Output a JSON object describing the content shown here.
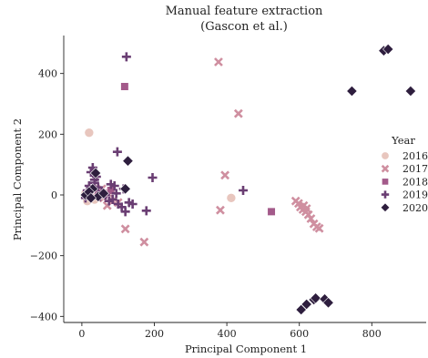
{
  "chart_data": {
    "type": "scatter",
    "title": "Manual feature extraction",
    "subtitle": "(Gascon et al.)",
    "xlabel": "Principal Component 1",
    "ylabel": "Principal Component 2",
    "xlim": [
      -50,
      950
    ],
    "ylim": [
      -420,
      525
    ],
    "xticks": [
      0,
      200,
      400,
      600,
      800
    ],
    "yticks": [
      -400,
      -200,
      0,
      200,
      400
    ],
    "xtick_labels": [
      "0",
      "200",
      "400",
      "600",
      "800"
    ],
    "ytick_labels": [
      "−400",
      "−200",
      "0",
      "200",
      "400"
    ],
    "grid": false,
    "legend": {
      "title": "Year",
      "placement": "right"
    },
    "series": [
      {
        "name": "2016",
        "marker": "circle",
        "color": "#e8c6be",
        "points": [
          [
            20,
            205
          ],
          [
            412,
            -10
          ],
          [
            15,
            -20
          ],
          [
            25,
            10
          ],
          [
            35,
            -15
          ],
          [
            10,
            5
          ],
          [
            40,
            20
          ],
          [
            50,
            -5
          ]
        ]
      },
      {
        "name": "2017",
        "marker": "x",
        "color": "#cf8fa0",
        "points": [
          [
            377,
            438
          ],
          [
            432,
            268
          ],
          [
            395,
            65
          ],
          [
            382,
            -50
          ],
          [
            120,
            -112
          ],
          [
            172,
            -155
          ],
          [
            590,
            -20
          ],
          [
            598,
            -28
          ],
          [
            603,
            -40
          ],
          [
            610,
            -48
          ],
          [
            618,
            -55
          ],
          [
            625,
            -65
          ],
          [
            632,
            -78
          ],
          [
            640,
            -95
          ],
          [
            648,
            -105
          ],
          [
            655,
            -110
          ],
          [
            612,
            -35
          ],
          [
            620,
            -45
          ],
          [
            70,
            -35
          ],
          [
            85,
            -20
          ],
          [
            60,
            -10
          ],
          [
            100,
            -25
          ],
          [
            40,
            10
          ],
          [
            55,
            20
          ],
          [
            75,
            5
          ]
        ]
      },
      {
        "name": "2018",
        "marker": "square",
        "color": "#a35a8a",
        "points": [
          [
            118,
            357
          ],
          [
            523,
            -55
          ],
          [
            30,
            20
          ],
          [
            45,
            5
          ],
          [
            60,
            0
          ],
          [
            20,
            -5
          ],
          [
            80,
            15
          ]
        ]
      },
      {
        "name": "2019",
        "marker": "plus",
        "color": "#6a3e73",
        "points": [
          [
            123,
            455
          ],
          [
            98,
            142
          ],
          [
            195,
            57
          ],
          [
            445,
            15
          ],
          [
            178,
            -52
          ],
          [
            30,
            90
          ],
          [
            25,
            75
          ],
          [
            40,
            60
          ],
          [
            35,
            40
          ],
          [
            20,
            30
          ],
          [
            45,
            25
          ],
          [
            15,
            15
          ],
          [
            55,
            10
          ],
          [
            65,
            0
          ],
          [
            85,
            -15
          ],
          [
            90,
            30
          ],
          [
            95,
            5
          ],
          [
            100,
            -30
          ],
          [
            110,
            -40
          ],
          [
            120,
            -55
          ],
          [
            130,
            -25
          ],
          [
            140,
            -30
          ],
          [
            75,
            -20
          ],
          [
            50,
            -5
          ],
          [
            10,
            -10
          ],
          [
            35,
            50
          ],
          [
            80,
            35
          ],
          [
            115,
            20
          ]
        ]
      },
      {
        "name": "2020",
        "marker": "diamond",
        "color": "#2e1e3e",
        "points": [
          [
            833,
            475
          ],
          [
            845,
            480
          ],
          [
            745,
            342
          ],
          [
            907,
            342
          ],
          [
            127,
            112
          ],
          [
            38,
            72
          ],
          [
            30,
            20
          ],
          [
            10,
            0
          ],
          [
            45,
            -5
          ],
          [
            120,
            20
          ],
          [
            605,
            -378
          ],
          [
            620,
            -360
          ],
          [
            640,
            -345
          ],
          [
            645,
            -340
          ],
          [
            670,
            -343
          ],
          [
            680,
            -355
          ],
          [
            20,
            10
          ],
          [
            60,
            5
          ],
          [
            25,
            -10
          ]
        ]
      }
    ]
  }
}
